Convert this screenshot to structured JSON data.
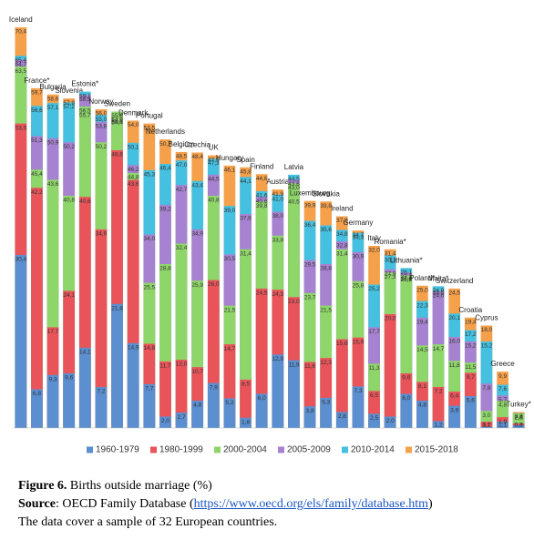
{
  "chart_data": {
    "type": "overlapping-bar",
    "categories": [
      "Iceland",
      "France*",
      "Bulgaria",
      "Slovenia",
      "Estonia*",
      "Norway",
      "Sweden",
      "Denmark",
      "Portugal",
      "Netherlands",
      "Belgium",
      "Czechia",
      "UK",
      "Hungary",
      "Spain",
      "Finland",
      "Austria",
      "Latvia",
      "Luxembourg",
      "Slovakia",
      "Ireland",
      "Germany",
      "Italy",
      "Romania*",
      "Lithuania*",
      "Poland*",
      "Malta*",
      "Switzerland",
      "Croatia",
      "Cyprus",
      "Greece",
      "Turkey*"
    ],
    "series": [
      {
        "name": "1960-1979",
        "color": "#5b8fd0",
        "values": [
          30.4,
          6.8,
          9.3,
          9.6,
          14.1,
          7.2,
          21.8,
          14.9,
          7.7,
          2.0,
          2.7,
          4.8,
          7.9,
          5.2,
          1.8,
          6.0,
          12.9,
          11.9,
          3.8,
          5.3,
          2.8,
          7.3,
          2.5,
          2.0,
          6.0,
          4.8,
          1.2,
          3.9,
          5.6,
          0.2,
          1.1,
          0.5
        ],
        "value_labels": [
          "30,4",
          "6,8",
          "9,3",
          "9,6",
          "14,1",
          "7,2",
          "21,8",
          "14,9",
          "7,7",
          "2,0",
          "2,7",
          "4,8",
          "7,9",
          "5,2",
          "1,8",
          "6,0",
          "12,9",
          "11,9",
          "3,8",
          "5,3",
          "2,8",
          "7,3",
          "2,5",
          "2,0",
          "6,0",
          "4,8",
          "1,2",
          "3,9",
          "5,6",
          "0,2",
          "1,1",
          "0,5"
        ]
      },
      {
        "name": "1980-1999",
        "color": "#e8545a",
        "values": [
          53.5,
          42.2,
          17.7,
          24.1,
          40.6,
          34.9,
          48.8,
          43.6,
          14.8,
          11.7,
          12.0,
          10.7,
          26.0,
          14.7,
          8.5,
          24.5,
          24.3,
          23.0,
          11.6,
          12.3,
          15.6,
          15.9,
          6.5,
          20.0,
          9.6,
          8.1,
          7.2,
          6.4,
          9.7,
          1.1,
          1.9,
          0.8
        ],
        "value_labels": [
          "53,5",
          "42,2",
          "17,7",
          "24,1",
          "40,6",
          "34,9",
          "48,8",
          "43,6",
          "14,8",
          "11,7",
          "12,0",
          "10,7",
          "26,0",
          "14,7",
          "8,5",
          "24,5",
          "24,3",
          "23,0",
          "11,6",
          "12,3",
          "15,6",
          "15,9",
          "6,5",
          "20,0",
          "9,6",
          "8,1",
          "7,2",
          "6,4",
          "9,7",
          "1,1",
          "1,9",
          "0,8"
        ]
      },
      {
        "name": "2000-2004",
        "color": "#8fd66a",
        "values": [
          63.5,
          45.4,
          43.6,
          40.8,
          56.5,
          50.2,
          55.6,
          44.8,
          25.5,
          28.8,
          32.4,
          25.9,
          40.8,
          21.5,
          31.4,
          39.8,
          33.8,
          43.0,
          23.7,
          21.5,
          31.4,
          25.8,
          11.3,
          27.3,
          26.8,
          14.5,
          14.7,
          11.8,
          11.5,
          3.0,
          4.8,
          2.6
        ],
        "value_labels": [
          "63,5",
          "45,4",
          "43,6",
          "40,8",
          "56,5",
          "50,2",
          "55,6",
          "44,8",
          "25,5",
          "28,8",
          "32,4",
          "25,9",
          "40,8",
          "21,5",
          "31,4",
          "39,8",
          "33,8",
          "43,0",
          "23,7",
          "21,5",
          "31,4",
          "25,8",
          "11,3",
          "27,3",
          "26,8",
          "14,5",
          "14,7",
          "11,8",
          "11,5",
          "3,0",
          "4,8",
          "2,6"
        ]
      },
      {
        "name": "2005-2009",
        "color": "#a782d0",
        "values": [
          64.7,
          51.3,
          50.9,
          50.2,
          58.5,
          53.8,
          54.9,
          46.2,
          34.0,
          39.2,
          42.7,
          34.9,
          44.5,
          30.5,
          37.6,
          40.6,
          38.0,
          43.6,
          29.5,
          28.8,
          32.8,
          30.9,
          17.7,
          27.9,
          27.3,
          19.4,
          24.0,
          16.0,
          15.2,
          7.8,
          5.7,
          2.6
        ],
        "value_labels": [
          "64,7",
          "51,3",
          "50,9",
          "50,2",
          "58,5",
          "53,8",
          "54,9",
          "46,2",
          "34,0",
          "39,2",
          "42,7",
          "34,9",
          "44,5",
          "30,5",
          "37,6",
          "40,6",
          "38,0",
          "43,6",
          "29,5",
          "28,8",
          "32,8",
          "30,9",
          "17,7",
          "27,9",
          "27,3",
          "19,4",
          "24,0",
          "16,0",
          "15,2",
          "7,8",
          "5,7",
          "2,6"
        ]
      },
      {
        "name": "2010-2014",
        "color": "#45c0e0",
        "values": [
          65.4,
          56.6,
          57.1,
          57.2,
          59.1,
          55.0,
          54.4,
          50.1,
          45.3,
          46.4,
          47.0,
          43.4,
          47.3,
          39.0,
          44.1,
          41.6,
          41.0,
          44.5,
          36.4,
          35.6,
          34.8,
          34.3,
          25.2,
          30.3,
          28.1,
          22.3,
          24.9,
          20.1,
          17.2,
          15.2,
          7.6,
          2.6
        ],
        "value_labels": [
          "65,4",
          "56,6",
          "57,1",
          "57,2",
          "59,1",
          "55,0",
          "54,4",
          "50,1",
          "45,3",
          "46,4",
          "47,0",
          "43,4",
          "47,3",
          "39,0",
          "44,1",
          "41,6",
          "41,0",
          "44,5",
          "36,4",
          "35,6",
          "34,8",
          "34,3",
          "25,2",
          "30,3",
          "28,1",
          "22,3",
          "24,9",
          "20,1",
          "17,2",
          "15,2",
          "7,6",
          "2,6"
        ]
      },
      {
        "name": "2015-2018",
        "color": "#f5a04a",
        "values": [
          70.4,
          59.7,
          58.6,
          57.9,
          55.7,
          56.0,
          54.6,
          54.0,
          53.5,
          50.7,
          48.5,
          48.4,
          47.9,
          46.1,
          45.8,
          44.6,
          41.9,
          40.5,
          39.9,
          39.8,
          37.2,
          34.7,
          32.0,
          31.4,
          27.0,
          25.0,
          24.5,
          24.5,
          19.4,
          18.0,
          9.9,
          2.8
        ],
        "value_labels": [
          "70,4",
          "59,7",
          "58,6",
          "57,9",
          "55,7",
          "56,0",
          "54,6",
          "54,0",
          "53,5",
          "50,7",
          "48,5",
          "48,4",
          "47,9",
          "46,1",
          "45,8",
          "44,6",
          "41,9",
          "40,5",
          "39,9",
          "39,8",
          "37,2",
          "34,7",
          "32,0",
          "31,4",
          "27,0",
          "25,0",
          "24,5",
          "24,5",
          "19,4",
          "18,0",
          "9,9",
          "2,8"
        ]
      }
    ],
    "legend": "bottom"
  },
  "caption": {
    "figure_label": "Figure 6.",
    "figure_title": "Births outside marriage (%)",
    "source_label": "Source",
    "source_text": ": OECD Family Database (",
    "source_url": "https://www.oecd.org/els/family/database.htm",
    "source_end": ")",
    "note": "The data cover a sample of 32 European countries."
  }
}
